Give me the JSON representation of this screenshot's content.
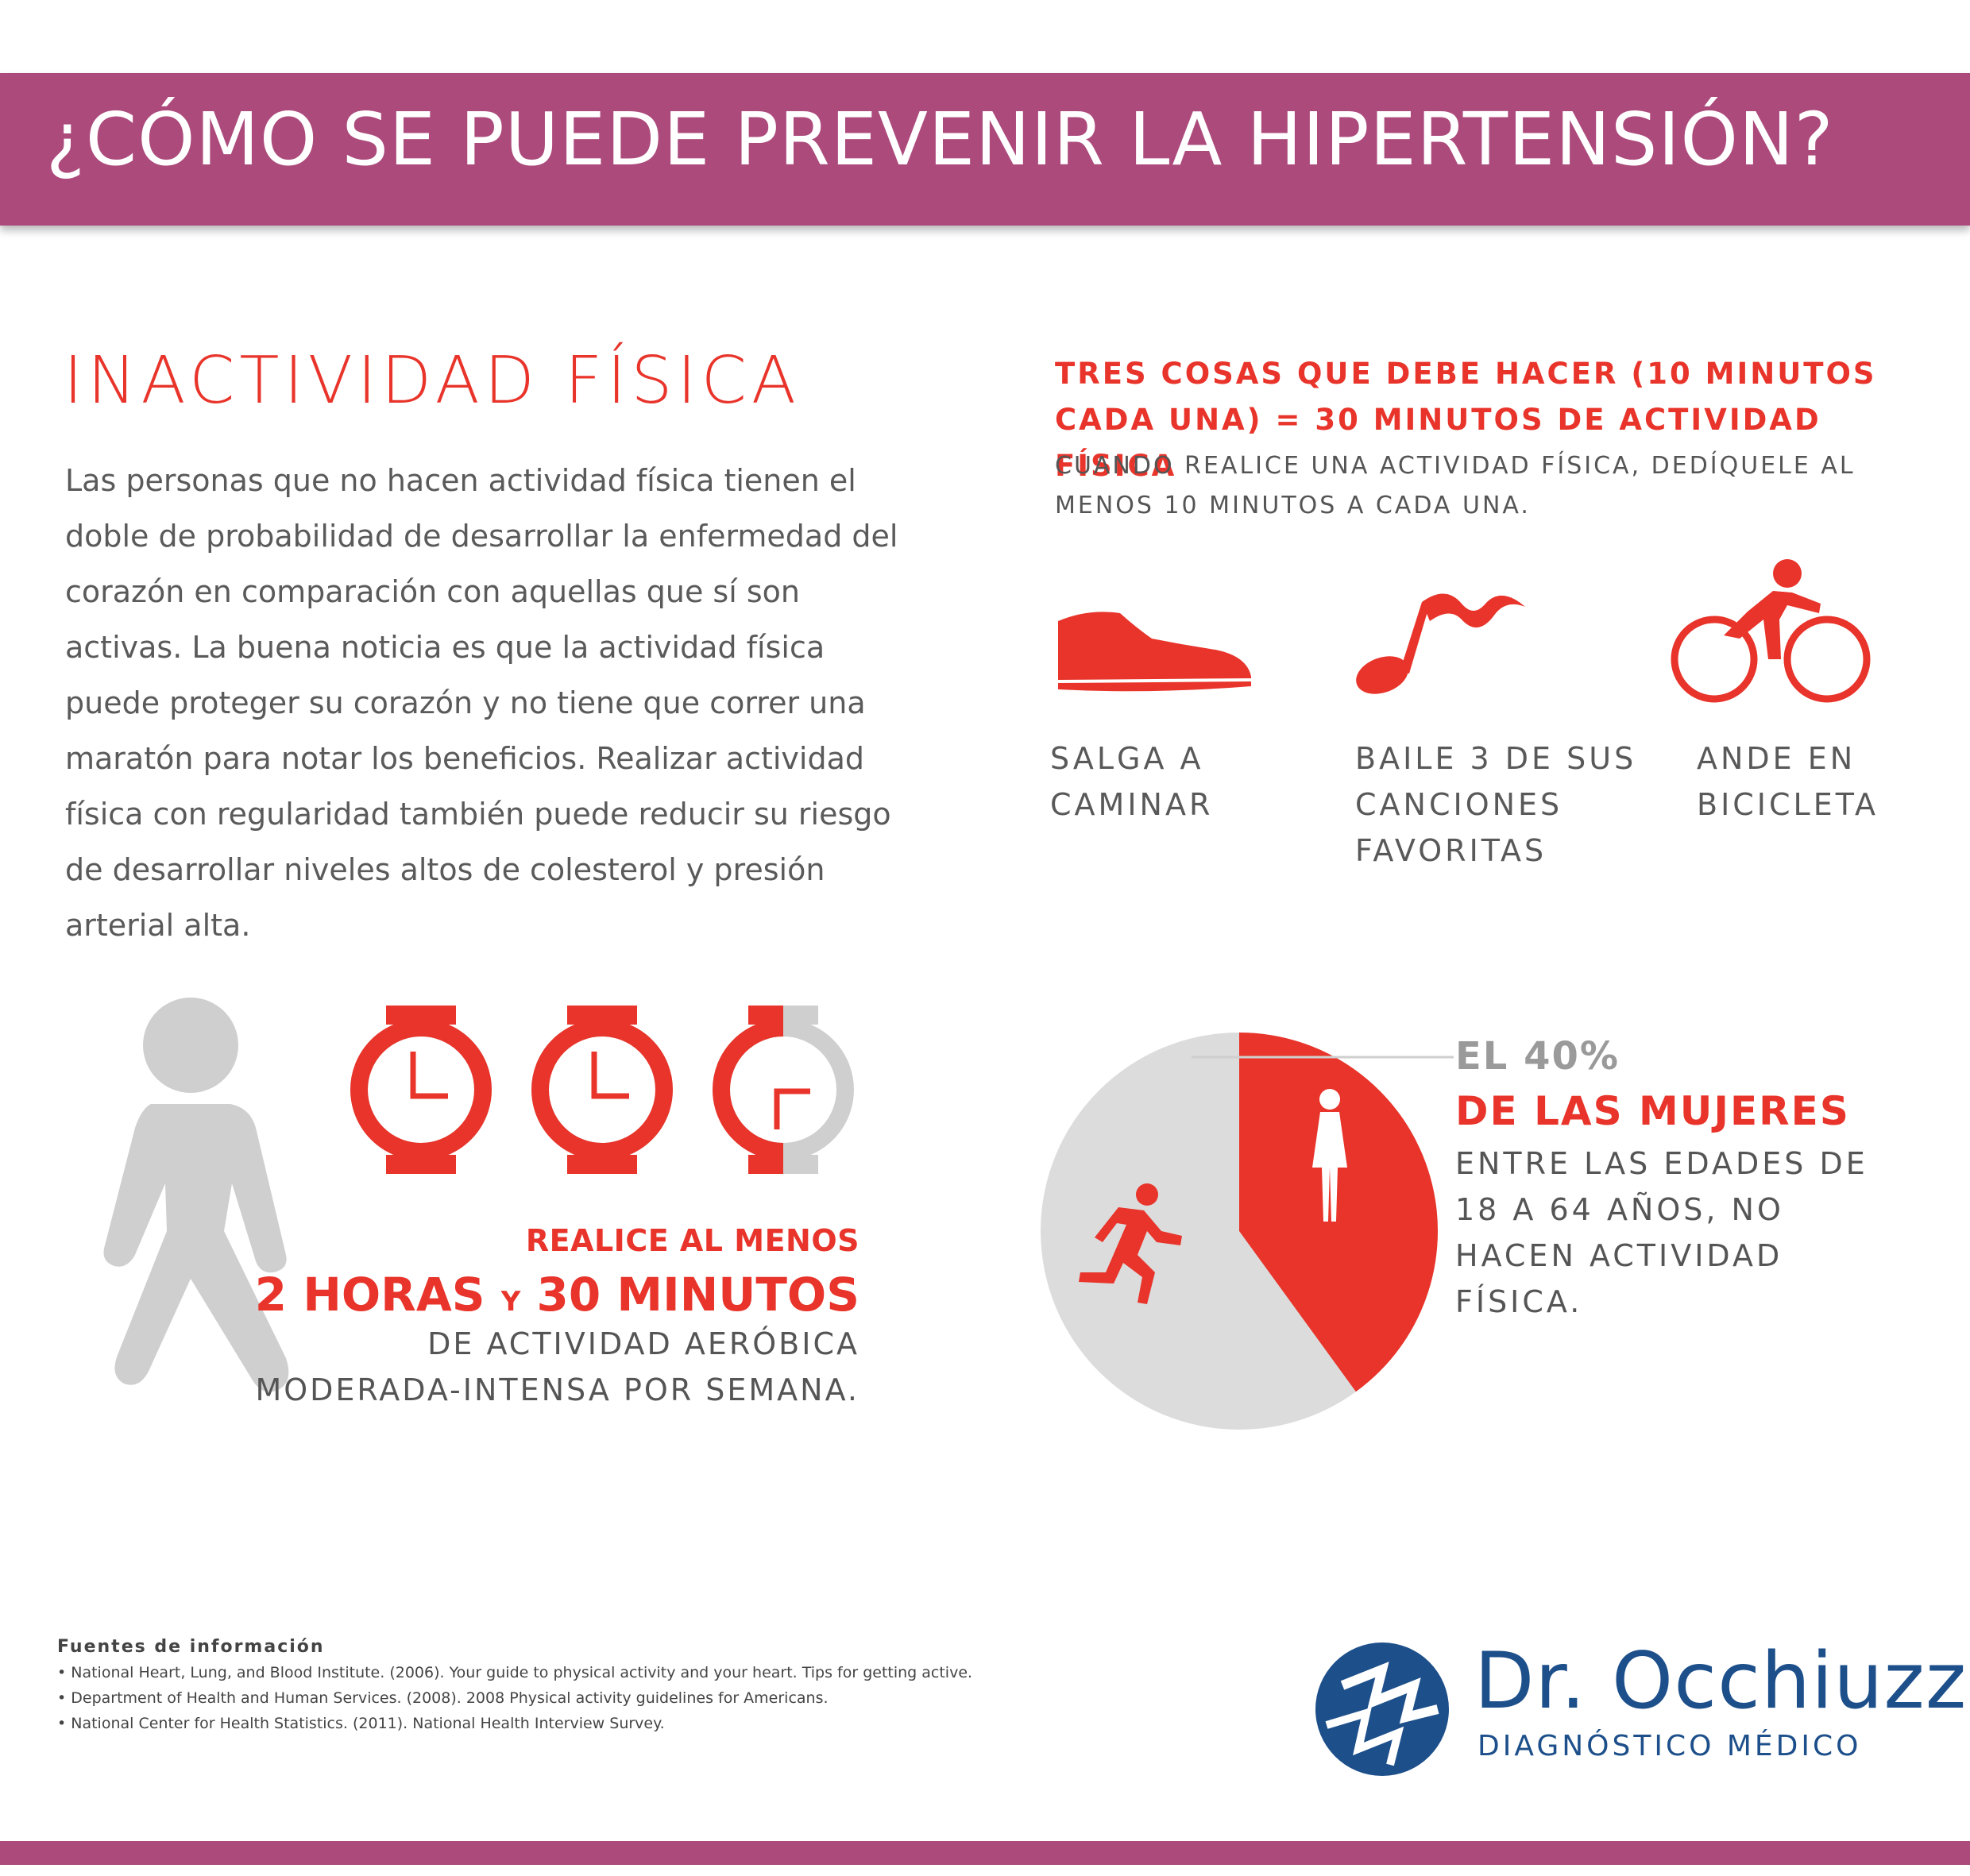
{
  "banner": {
    "title": "¿CÓMO SE PUEDE PREVENIR LA HIPERTENSIÓN?"
  },
  "section": {
    "title": "INACTIVIDAD FÍSICA",
    "intro": "Las personas que no hacen actividad física tienen el doble de probabilidad de desarrollar la enfermedad del corazón en comparación con aquellas que sí son activas. La buena noticia es que la actividad física puede proteger su corazón y no tiene que correr una maratón para notar los beneficios. Realizar actividad física con regularidad también puede reducir su riesgo de desarrollar niveles altos de colesterol y presión arterial alta."
  },
  "tips": {
    "heading": "TRES COSAS QUE DEBE HACER (10 MINUTOS CADA UNA) = 30 MINUTOS DE ACTIVIDAD FÍSICA",
    "sub": "CUANDO REALICE UNA ACTIVIDAD FÍSICA, DEDÍQUELE AL MENOS 10 MINUTOS A CADA UNA.",
    "activities": [
      {
        "icon": "shoe-icon",
        "label": "SALGA A\nCAMINAR"
      },
      {
        "icon": "music-note-icon",
        "label": "BAILE 3 DE SUS\nCANCIONES\nFAVORITAS"
      },
      {
        "icon": "cyclist-icon",
        "label": "ANDE EN\nBICICLETA"
      }
    ]
  },
  "goal": {
    "line1": "REALICE AL MENOS",
    "line2_a": "2 HORAS",
    "line2_y": "Y",
    "line2_b": "30 MINUTOS",
    "line3": "DE ACTIVIDAD AERÓBICA",
    "line4": "MODERADA-INTENSA POR SEMANA.",
    "watches": [
      {
        "fraction_filled": 1.0
      },
      {
        "fraction_filled": 1.0
      },
      {
        "fraction_filled": 0.5
      }
    ]
  },
  "stat": {
    "percent_label": "EL 40%",
    "group": "DE LAS MUJERES",
    "desc": "ENTRE LAS EDADES DE 18 A 64 AÑOS, NO HACEN ACTIVIDAD FÍSICA.",
    "pie_fraction_red": 0.4
  },
  "sources": {
    "title": "Fuentes de información",
    "items": [
      "• National Heart, Lung, and Blood Institute. (2006). Your guide to physical activity and your heart. Tips for getting active.",
      "• Department of Health and Human Services. (2008). 2008 Physical activity guidelines for Americans.",
      "• National Center for Health Statistics. (2011). National Health Interview Survey."
    ]
  },
  "logo": {
    "name": "Dr. Occhiuzzi",
    "tagline": "DIAGNÓSTICO MÉDICO"
  },
  "colors": {
    "brand": "#ac4a7c",
    "accent_red": "#e8342a",
    "grey_icon": "#cfcfcf",
    "logo_blue": "#1d4f8a"
  }
}
